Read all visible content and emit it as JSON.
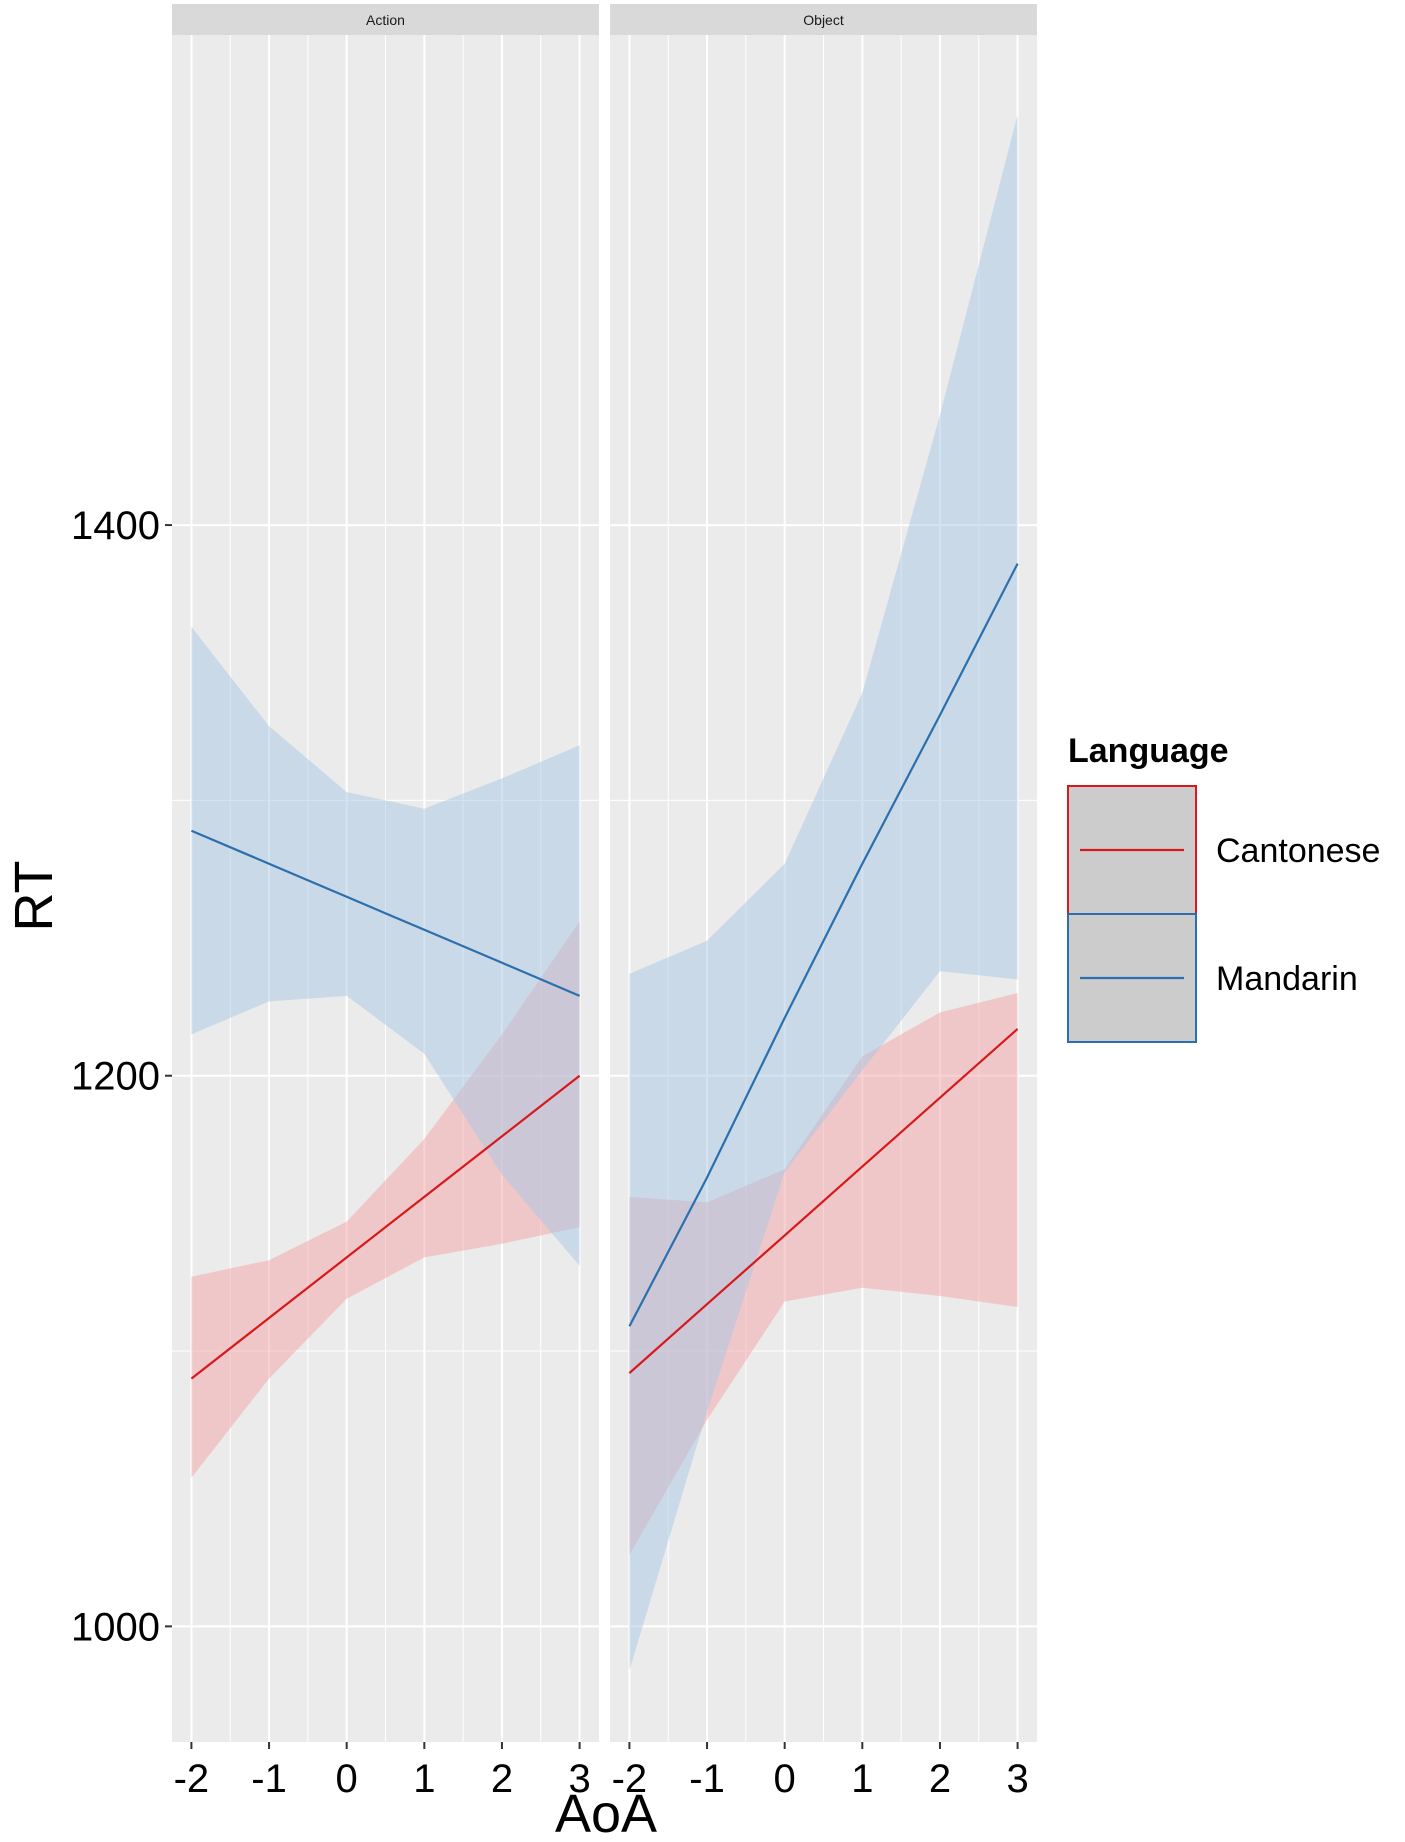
{
  "chart_data": {
    "type": "line",
    "facets": [
      "Action",
      "Object"
    ],
    "xlabel": "AoA",
    "ylabel": "RT",
    "x_ticks": [
      -2,
      -1,
      0,
      1,
      2,
      3
    ],
    "x_tick_labels": [
      "-2",
      "-1",
      "0",
      "1",
      "2",
      "3"
    ],
    "y_ticks": [
      1000,
      1200,
      1400
    ],
    "y_tick_labels": [
      "1000",
      "1200",
      "1400"
    ],
    "xlim": [
      -2.25,
      3.25
    ],
    "ylim": [
      958,
      1578
    ],
    "grid": true,
    "legend": {
      "title": "Language",
      "placement": "right",
      "entries": [
        "Cantonese",
        "Mandarin"
      ]
    },
    "colors": {
      "Cantonese": "#d7191c",
      "Mandarin": "#2c6fad",
      "Cantonese_band": "#f4a3a6",
      "Mandarin_band": "#a8c8e4",
      "panel_bg": "#ebebeb",
      "strip_bg": "#d9d9d9"
    },
    "panels": [
      {
        "facet": "Action",
        "series": [
          {
            "name": "Cantonese",
            "x": [
              -2,
              -1,
              0,
              1,
              2,
              3
            ],
            "y": [
              1090,
              1112,
              1134,
              1156,
              1178,
              1200
            ],
            "lower": [
              1054,
              1090,
              1119,
              1134,
              1139,
              1145
            ],
            "upper": [
              1127,
              1133,
              1147,
              1177,
              1215,
              1256
            ]
          },
          {
            "name": "Mandarin",
            "x": [
              -2,
              -1,
              0,
              1,
              2,
              3
            ],
            "y": [
              1289,
              1277,
              1265,
              1253,
              1241,
              1229
            ],
            "lower": [
              1215,
              1227,
              1229,
              1208,
              1164,
              1131
            ],
            "upper": [
              1363,
              1327,
              1303,
              1297,
              1308,
              1320
            ]
          }
        ]
      },
      {
        "facet": "Object",
        "series": [
          {
            "name": "Cantonese",
            "x": [
              -2,
              -1,
              0,
              1,
              2,
              3
            ],
            "y": [
              1092,
              1117,
              1142,
              1167,
              1192,
              1217
            ],
            "lower": [
              1026,
              1075,
              1118,
              1123,
              1120,
              1116
            ],
            "upper": [
              1156,
              1154,
              1166,
              1207,
              1223,
              1230
            ]
          },
          {
            "name": "Mandarin",
            "x": [
              -2,
              -1,
              0,
              1,
              2,
              3
            ],
            "y": [
              1109,
              1163,
              1221,
              1277,
              1331,
              1386
            ],
            "lower": [
              984,
              1078,
              1165,
              1202,
              1238,
              1235
            ],
            "upper": [
              1237,
              1249,
              1277,
              1339,
              1440,
              1549
            ]
          }
        ]
      }
    ]
  }
}
